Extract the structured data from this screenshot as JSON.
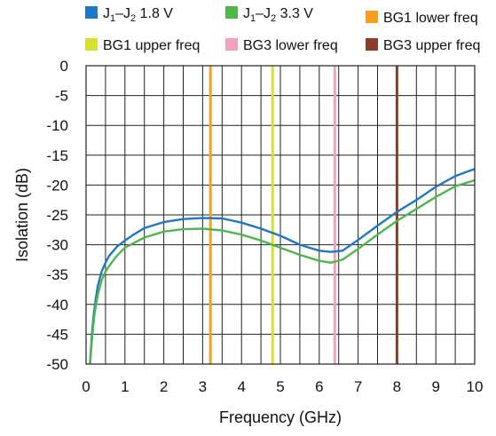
{
  "chart_data": {
    "type": "line",
    "title": "",
    "xlabel": "Frequency (GHz)",
    "ylabel": "Isolation (dB)",
    "xlim": [
      0,
      10
    ],
    "ylim": [
      -50,
      0
    ],
    "xticks": [
      "0",
      "1",
      "2",
      "3",
      "4",
      "5",
      "6",
      "7",
      "8",
      "9",
      "10"
    ],
    "yticks": [
      "0",
      "-5",
      "-10",
      "-15",
      "-20",
      "-25",
      "-30",
      "-35",
      "-40",
      "-45",
      "-50"
    ],
    "grid": true,
    "legend_position": "top",
    "series": [
      {
        "name": "J1–J2 1.8 V",
        "name_parts": {
          "a": "J",
          "a_sub": "1",
          "sep": "–",
          "b": "J",
          "b_sub": "2",
          "rest": " 1.8 V"
        },
        "color": "#1f77c8",
        "x": [
          0.1,
          0.15,
          0.2,
          0.25,
          0.3,
          0.4,
          0.5,
          0.6,
          0.8,
          1.0,
          1.2,
          1.5,
          2.0,
          2.5,
          3.0,
          3.5,
          4.0,
          4.5,
          5.0,
          5.5,
          6.0,
          6.3,
          6.6,
          7.0,
          7.5,
          8.0,
          8.5,
          9.0,
          9.5,
          10.0
        ],
        "y": [
          -50,
          -45,
          -41.5,
          -39,
          -37,
          -34.5,
          -33,
          -31.8,
          -30.3,
          -29.3,
          -28.4,
          -27.2,
          -26.2,
          -25.7,
          -25.5,
          -25.6,
          -26.3,
          -27.3,
          -28.5,
          -30.0,
          -31.0,
          -31.2,
          -31.0,
          -29.2,
          -26.8,
          -24.5,
          -22.5,
          -20.3,
          -18.5,
          -17.3
        ]
      },
      {
        "name": "J1–J2 3.3 V",
        "name_parts": {
          "a": "J",
          "a_sub": "1",
          "sep": "–",
          "b": "J",
          "b_sub": "2",
          "rest": " 3.3 V"
        },
        "color": "#4cb84c",
        "x": [
          0.1,
          0.15,
          0.2,
          0.25,
          0.3,
          0.4,
          0.5,
          0.6,
          0.8,
          1.0,
          1.2,
          1.5,
          2.0,
          2.5,
          3.0,
          3.5,
          4.0,
          4.5,
          5.0,
          5.5,
          6.0,
          6.3,
          6.6,
          7.0,
          7.5,
          8.0,
          8.5,
          9.0,
          9.5,
          10.0
        ],
        "y": [
          -50,
          -46,
          -42.5,
          -40.2,
          -38.5,
          -36,
          -34.5,
          -33.5,
          -31.8,
          -30.5,
          -29.8,
          -28.8,
          -27.8,
          -27.4,
          -27.3,
          -27.6,
          -28.3,
          -29.3,
          -30.5,
          -31.7,
          -32.7,
          -33.0,
          -32.5,
          -30.7,
          -28.3,
          -26.0,
          -24.0,
          -22.0,
          -20.2,
          -19.2
        ]
      }
    ],
    "vlines": [
      {
        "name": "BG1 lower freq",
        "x": 3.2,
        "color": "#f5a020"
      },
      {
        "name": "BG1 upper freq",
        "x": 4.8,
        "color": "#d8e030"
      },
      {
        "name": "BG3 lower freq",
        "x": 6.4,
        "color": "#f4a0c0"
      },
      {
        "name": "BG3 upper freq",
        "x": 8.0,
        "color": "#8b3c2a"
      }
    ]
  }
}
